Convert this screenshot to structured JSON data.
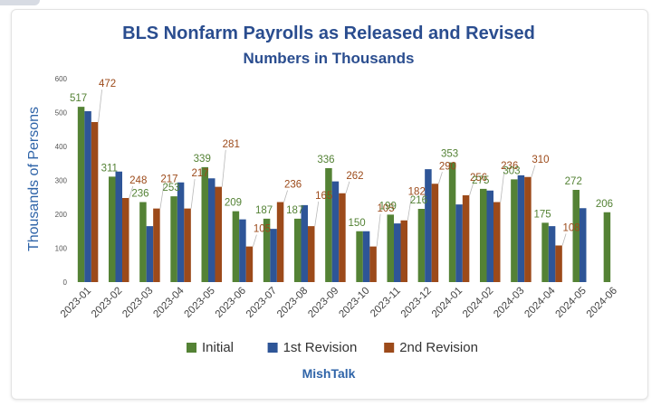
{
  "chart_data": {
    "type": "bar",
    "title": "BLS Nonfarm Payrolls as Released and Revised",
    "subtitle": "Numbers in Thousands",
    "ylabel": "Thousands of Persons",
    "xlabel": "",
    "ylim": [
      0,
      600
    ],
    "yticks": [
      0,
      100,
      200,
      300,
      400,
      500,
      600
    ],
    "categories": [
      "2023-01",
      "2023-02",
      "2023-03",
      "2023-04",
      "2023-05",
      "2023-06",
      "2023-07",
      "2023-08",
      "2023-09",
      "2023-10",
      "2023-11",
      "2023-12",
      "2024-01",
      "2024-02",
      "2024-03",
      "2024-04",
      "2024-05",
      "2024-06"
    ],
    "series": [
      {
        "name": "Initial",
        "color": "#548235",
        "values": [
          517,
          311,
          236,
          253,
          339,
          209,
          187,
          187,
          336,
          150,
          199,
          216,
          353,
          275,
          303,
          175,
          272,
          206
        ]
      },
      {
        "name": "1st Revision",
        "color": "#2e5597",
        "values": [
          504,
          326,
          165,
          294,
          306,
          185,
          157,
          227,
          297,
          150,
          173,
          333,
          229,
          270,
          315,
          165,
          218,
          null
        ]
      },
      {
        "name": "2nd Revision",
        "color": "#9c4a1a",
        "values": [
          472,
          248,
          217,
          217,
          281,
          105,
          236,
          165,
          262,
          105,
          182,
          290,
          256,
          236,
          310,
          108,
          null,
          null
        ]
      }
    ],
    "labeled_series": [
      "Initial",
      "2nd Revision"
    ],
    "label_colors": {
      "Initial": "#548235",
      "2nd Revision": "#9c4a1a"
    },
    "grid": false,
    "legend_position": "bottom",
    "footer": "MishTalk"
  }
}
